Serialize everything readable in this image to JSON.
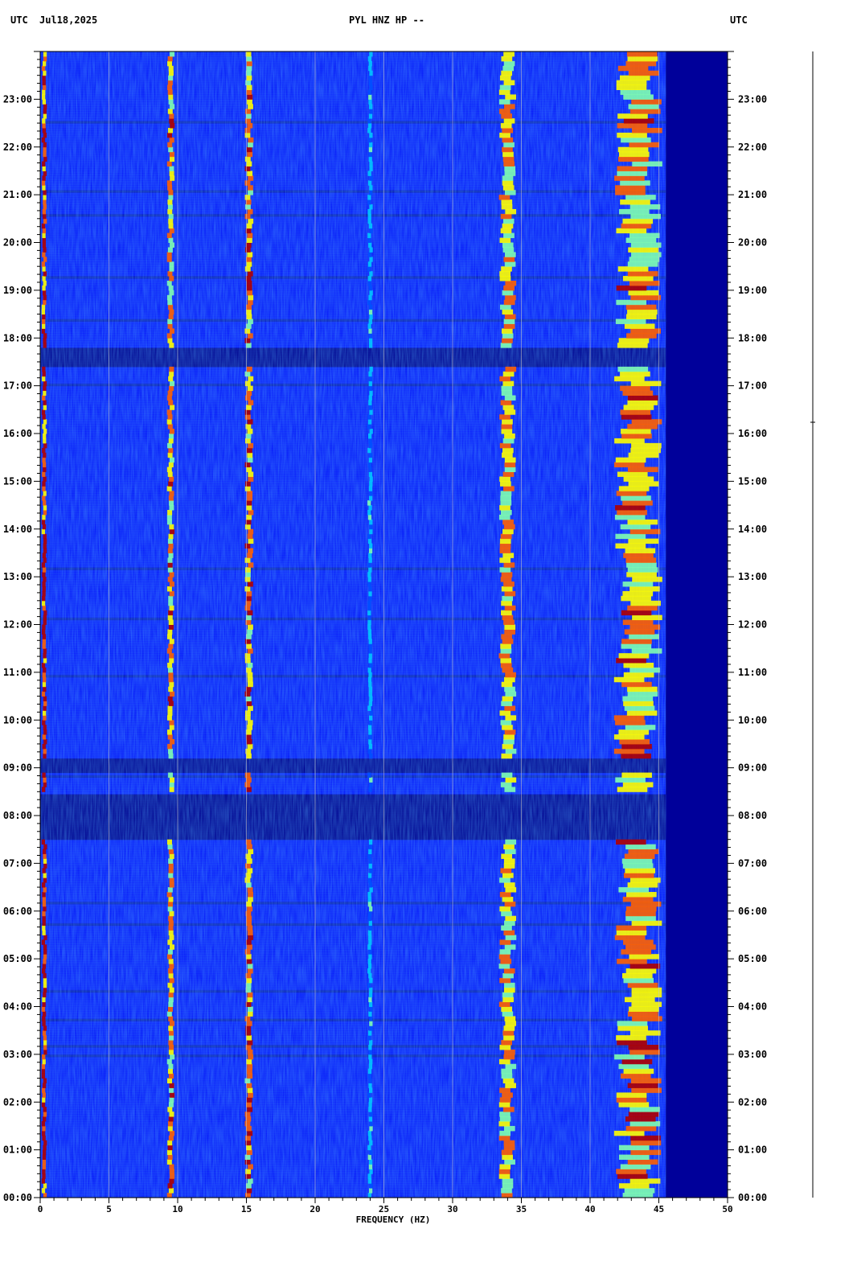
{
  "header": {
    "left_tz": "UTC",
    "date": "Jul18,2025",
    "station": "PYL HNZ HP --",
    "right_tz": "UTC"
  },
  "chart_data": {
    "type": "heatmap",
    "title": "PYL HNZ HP --",
    "xlabel": "FREQUENCY (HZ)",
    "xlim": [
      0,
      50
    ],
    "ylim_hours": [
      0,
      24
    ],
    "x_tick_labels": [
      "0",
      "5",
      "10",
      "15",
      "20",
      "25",
      "30",
      "35",
      "40",
      "45",
      "50"
    ],
    "y_tick_labels": [
      "00:00",
      "01:00",
      "02:00",
      "03:00",
      "04:00",
      "05:00",
      "06:00",
      "07:00",
      "08:00",
      "09:00",
      "10:00",
      "11:00",
      "12:00",
      "13:00",
      "14:00",
      "15:00",
      "16:00",
      "17:00",
      "18:00",
      "19:00",
      "20:00",
      "21:00",
      "22:00",
      "23:00"
    ],
    "grid": true,
    "colormap": [
      "#00008b",
      "#0000ff",
      "#0050ff",
      "#00c8ff",
      "#7fffb0",
      "#ffff00",
      "#ff6000",
      "#b00000"
    ],
    "spectral_lines": [
      {
        "freq": 0.3,
        "intensity": 0.95,
        "width": 0.25
      },
      {
        "freq": 9.5,
        "intensity": 0.78,
        "width": 0.35
      },
      {
        "freq": 15.2,
        "intensity": 0.82,
        "width": 0.4
      },
      {
        "freq": 24.0,
        "intensity": 0.45,
        "width": 0.25
      },
      {
        "freq": 34.0,
        "intensity": 0.72,
        "width": 0.8
      },
      {
        "freq": 43.5,
        "intensity": 0.78,
        "width": 2.2
      }
    ],
    "quiet_periods_hours": [
      [
        7.5,
        8.4
      ],
      [
        8.9,
        9.2
      ],
      [
        17.4,
        17.75
      ]
    ],
    "noise_cutoff_hz": 45.5
  }
}
